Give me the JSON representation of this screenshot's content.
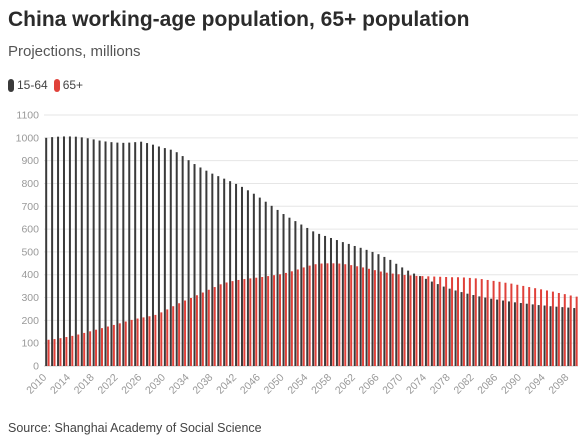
{
  "title": "China working-age population, 65+ population",
  "subtitle": "Projections, millions",
  "source": "Source: Shanghai Academy of Social Science",
  "legend": [
    {
      "label": "15-64",
      "color": "#3a3a3a"
    },
    {
      "label": "65+",
      "color": "#e0413a"
    }
  ],
  "chart_data": {
    "type": "bar",
    "title": "China working-age population, 65+ population",
    "subtitle": "Projections, millions",
    "x_start": 2010,
    "x_end": 2099,
    "x_ticks": [
      "2010",
      "2014",
      "2018",
      "2022",
      "2026",
      "2030",
      "2034",
      "2038",
      "2042",
      "2046",
      "2050",
      "2054",
      "2058",
      "2062",
      "2066",
      "2070",
      "2074",
      "2078",
      "2082",
      "2086",
      "2090",
      "2094",
      "2098"
    ],
    "ylim": [
      0,
      1100
    ],
    "y_ticks": [
      0,
      100,
      200,
      300,
      400,
      500,
      600,
      700,
      800,
      900,
      1000,
      1100
    ],
    "grid": true,
    "legend_position": "top-left",
    "series": [
      {
        "name": "15-64",
        "color": "#3a3a3a",
        "values": [
          1000,
          1003,
          1005,
          1006,
          1006,
          1005,
          1002,
          998,
          993,
          988,
          984,
          981,
          979,
          978,
          979,
          981,
          983,
          977,
          970,
          962,
          955,
          948,
          937,
          920,
          902,
          885,
          870,
          856,
          843,
          832,
          821,
          810,
          798,
          785,
          770,
          755,
          738,
          720,
          702,
          684,
          666,
          650,
          635,
          620,
          605,
          590,
          579,
          570,
          561,
          552,
          543,
          535,
          526,
          518,
          509,
          500,
          490,
          478,
          465,
          448,
          432,
          418,
          405,
          394,
          382,
          370,
          359,
          348,
          339,
          331,
          324,
          317,
          311,
          305,
          300,
          295,
          291,
          287,
          283,
          279,
          276,
          273,
          270,
          267,
          265,
          262,
          260,
          258,
          256,
          254
        ]
      },
      {
        "name": "65+",
        "color": "#e0413a",
        "values": [
          115,
          118,
          122,
          127,
          132,
          138,
          145,
          152,
          159,
          166,
          173,
          180,
          187,
          195,
          202,
          208,
          213,
          218,
          224,
          235,
          248,
          262,
          275,
          287,
          298,
          310,
          322,
          334,
          346,
          358,
          366,
          372,
          377,
          381,
          384,
          387,
          390,
          394,
          398,
          402,
          408,
          415,
          423,
          432,
          440,
          446,
          449,
          450,
          450,
          449,
          446,
          442,
          437,
          432,
          426,
          420,
          414,
          409,
          405,
          402,
          399,
          397,
          395,
          394,
          393,
          392,
          391,
          390,
          389,
          389,
          388,
          386,
          384,
          381,
          377,
          373,
          369,
          365,
          361,
          356,
          351,
          346,
          341,
          336,
          331,
          326,
          320,
          315,
          309,
          304
        ]
      }
    ]
  }
}
